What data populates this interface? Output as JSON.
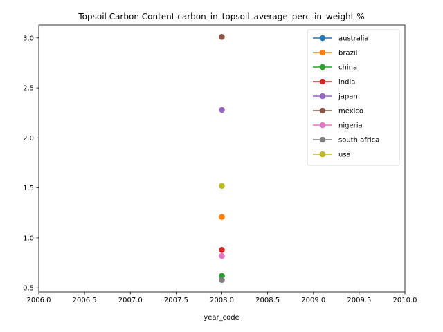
{
  "chart_data": {
    "type": "line",
    "title": "Topsoil Carbon Content carbon_in_topsoil_average_perc_in_weight %",
    "xlabel": "year_code",
    "ylabel": "",
    "xlim": [
      2006.0,
      2010.0
    ],
    "ylim": [
      0.46,
      3.13
    ],
    "x_ticks": [
      "2006.0",
      "2006.5",
      "2007.0",
      "2007.5",
      "2008.0",
      "2008.5",
      "2009.0",
      "2009.5",
      "2010.0"
    ],
    "y_ticks": [
      "0.5",
      "1.0",
      "1.5",
      "2.0",
      "2.5",
      "3.0"
    ],
    "x_tick_values": [
      2006.0,
      2006.5,
      2007.0,
      2007.5,
      2008.0,
      2008.5,
      2009.0,
      2009.5,
      2010.0
    ],
    "y_tick_values": [
      0.5,
      1.0,
      1.5,
      2.0,
      2.5,
      3.0
    ],
    "grid": false,
    "legend_position": "upper right",
    "series": [
      {
        "name": "australia",
        "color": "#1f77b4",
        "x": [
          2008.0
        ],
        "y": [
          0.62
        ]
      },
      {
        "name": "brazil",
        "color": "#ff7f0e",
        "x": [
          2008.0
        ],
        "y": [
          1.21
        ]
      },
      {
        "name": "china",
        "color": "#2ca02c",
        "x": [
          2008.0
        ],
        "y": [
          0.62
        ]
      },
      {
        "name": "india",
        "color": "#d62728",
        "x": [
          2008.0
        ],
        "y": [
          0.88
        ]
      },
      {
        "name": "japan",
        "color": "#9467bd",
        "x": [
          2008.0
        ],
        "y": [
          2.28
        ]
      },
      {
        "name": "mexico",
        "color": "#8c564b",
        "x": [
          2008.0
        ],
        "y": [
          3.01
        ]
      },
      {
        "name": "nigeria",
        "color": "#e377c2",
        "x": [
          2008.0
        ],
        "y": [
          0.82
        ]
      },
      {
        "name": "south africa",
        "color": "#7f7f7f",
        "x": [
          2008.0
        ],
        "y": [
          0.58
        ]
      },
      {
        "name": "usa",
        "color": "#bcbd22",
        "x": [
          2008.0
        ],
        "y": [
          1.52
        ]
      }
    ]
  }
}
